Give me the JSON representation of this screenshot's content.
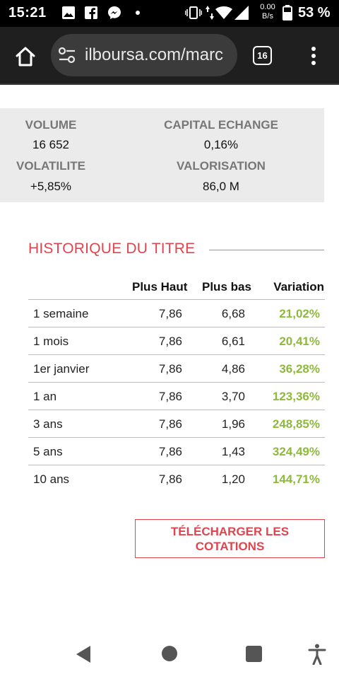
{
  "status_bar": {
    "time": "15:21",
    "net_speed": "0.00",
    "net_unit": "B/s",
    "battery": "53 %",
    "icons": [
      "image-icon",
      "facebook-icon",
      "messenger-icon",
      "dot-icon",
      "vibrate-icon",
      "data-arrows-icon",
      "wifi-icon",
      "signal-icon",
      "battery-icon"
    ]
  },
  "browser": {
    "url": "ilboursa.com/marc",
    "tab_count": "16",
    "icons": [
      "home-icon",
      "site-settings-icon",
      "more-vert-icon"
    ]
  },
  "stats": {
    "volume_label": "VOLUME",
    "volume_value": "16 652",
    "capital_label": "CAPITAL ECHANGE",
    "capital_value": "0,16%",
    "volatility_label": "VOLATILITE",
    "volatility_value": "+5,85%",
    "valuation_label": "VALORISATION",
    "valuation_value": "86,0 M"
  },
  "history": {
    "title": "HISTORIQUE DU TITRE",
    "columns": [
      "",
      "Plus Haut",
      "Plus bas",
      "Variation"
    ],
    "rows": [
      {
        "period": "1 semaine",
        "high": "7,86",
        "low": "6,68",
        "variation": "21,02%"
      },
      {
        "period": "1 mois",
        "high": "7,86",
        "low": "6,61",
        "variation": "20,41%"
      },
      {
        "period": "1er janvier",
        "high": "7,86",
        "low": "4,86",
        "variation": "36,28%"
      },
      {
        "period": "1 an",
        "high": "7,86",
        "low": "3,70",
        "variation": "123,36%"
      },
      {
        "period": "3 ans",
        "high": "7,86",
        "low": "1,96",
        "variation": "248,85%"
      },
      {
        "period": "5 ans",
        "high": "7,86",
        "low": "1,43",
        "variation": "324,49%"
      },
      {
        "period": "10 ans",
        "high": "7,86",
        "low": "1,20",
        "variation": "144,71%"
      }
    ]
  },
  "download": {
    "line1": "TÉLÉCHARGER LES",
    "line2": "COTATIONS"
  },
  "colors": {
    "accent": "#e0454f",
    "positive": "#8dba3a",
    "panel": "#ebebeb"
  }
}
